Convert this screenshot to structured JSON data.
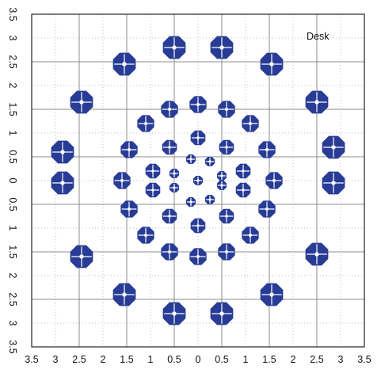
{
  "chart_data": {
    "type": "scatter",
    "title": "",
    "annotation": "Desk",
    "xlabel": "",
    "ylabel": "",
    "xlim": [
      -3.5,
      3.5
    ],
    "ylim": [
      -3.5,
      3.5
    ],
    "x_tick_labels": [
      "3.5",
      "3",
      "2.5",
      "2",
      "1.5",
      "1",
      "0.5",
      "0",
      "0.5",
      "1",
      "1.5",
      "2",
      "2.5",
      "3",
      "3.5"
    ],
    "y_tick_labels": [
      "3.5",
      "3",
      "2.5",
      "2",
      "1.5",
      "1",
      "0.5",
      "0",
      "0.5",
      "1",
      "1.5",
      "2",
      "2.5",
      "3",
      "3.5"
    ],
    "grid": true,
    "marker": "octagon",
    "marker_color": "#283c96",
    "series": [
      {
        "rings": [
          {
            "radius_class": "tiny",
            "points": [
              {
                "x": 0.5,
                "y": 0.1
              },
              {
                "x": 0.25,
                "y": 0.4
              },
              {
                "x": -0.15,
                "y": 0.45
              },
              {
                "x": -0.5,
                "y": 0.15
              },
              {
                "x": -0.5,
                "y": -0.15
              },
              {
                "x": -0.15,
                "y": -0.45
              },
              {
                "x": 0.25,
                "y": -0.4
              },
              {
                "x": 0.5,
                "y": -0.1
              },
              {
                "x": 0.0,
                "y": 0.0
              }
            ]
          },
          {
            "radius_class": "small",
            "points": [
              {
                "x": 0.0,
                "y": 0.9
              },
              {
                "x": 0.6,
                "y": 0.7
              },
              {
                "x": 0.95,
                "y": 0.2
              },
              {
                "x": 0.95,
                "y": -0.2
              },
              {
                "x": 0.6,
                "y": -0.75
              },
              {
                "x": 0.0,
                "y": -0.95
              },
              {
                "x": -0.6,
                "y": -0.75
              },
              {
                "x": -0.95,
                "y": -0.2
              },
              {
                "x": -0.95,
                "y": 0.2
              },
              {
                "x": -0.6,
                "y": 0.7
              }
            ]
          },
          {
            "radius_class": "medium",
            "points": [
              {
                "x": 0.0,
                "y": 1.6
              },
              {
                "x": 0.6,
                "y": 1.5
              },
              {
                "x": 1.1,
                "y": 1.2
              },
              {
                "x": 1.45,
                "y": 0.65
              },
              {
                "x": 1.6,
                "y": 0.0
              },
              {
                "x": 1.45,
                "y": -0.6
              },
              {
                "x": 1.1,
                "y": -1.15
              },
              {
                "x": 0.6,
                "y": -1.5
              },
              {
                "x": 0.0,
                "y": -1.6
              },
              {
                "x": -0.6,
                "y": -1.5
              },
              {
                "x": -1.1,
                "y": -1.15
              },
              {
                "x": -1.45,
                "y": -0.6
              },
              {
                "x": -1.6,
                "y": 0.0
              },
              {
                "x": -1.45,
                "y": 0.65
              },
              {
                "x": -1.1,
                "y": 1.2
              },
              {
                "x": -0.6,
                "y": 1.5
              }
            ]
          },
          {
            "radius_class": "large",
            "points": [
              {
                "x": -0.5,
                "y": 2.8
              },
              {
                "x": 0.5,
                "y": 2.8
              },
              {
                "x": 1.55,
                "y": 2.45
              },
              {
                "x": 2.5,
                "y": 1.65
              },
              {
                "x": 2.85,
                "y": 0.7
              },
              {
                "x": 2.85,
                "y": -0.05
              },
              {
                "x": 2.5,
                "y": -1.55
              },
              {
                "x": 1.55,
                "y": -2.4
              },
              {
                "x": 0.5,
                "y": -2.8
              },
              {
                "x": -0.5,
                "y": -2.8
              },
              {
                "x": -1.55,
                "y": -2.4
              },
              {
                "x": -2.45,
                "y": -1.6
              },
              {
                "x": -2.85,
                "y": -0.05
              },
              {
                "x": -2.85,
                "y": 0.6
              },
              {
                "x": -2.45,
                "y": 1.65
              },
              {
                "x": -1.55,
                "y": 2.45
              }
            ]
          }
        ]
      }
    ]
  }
}
